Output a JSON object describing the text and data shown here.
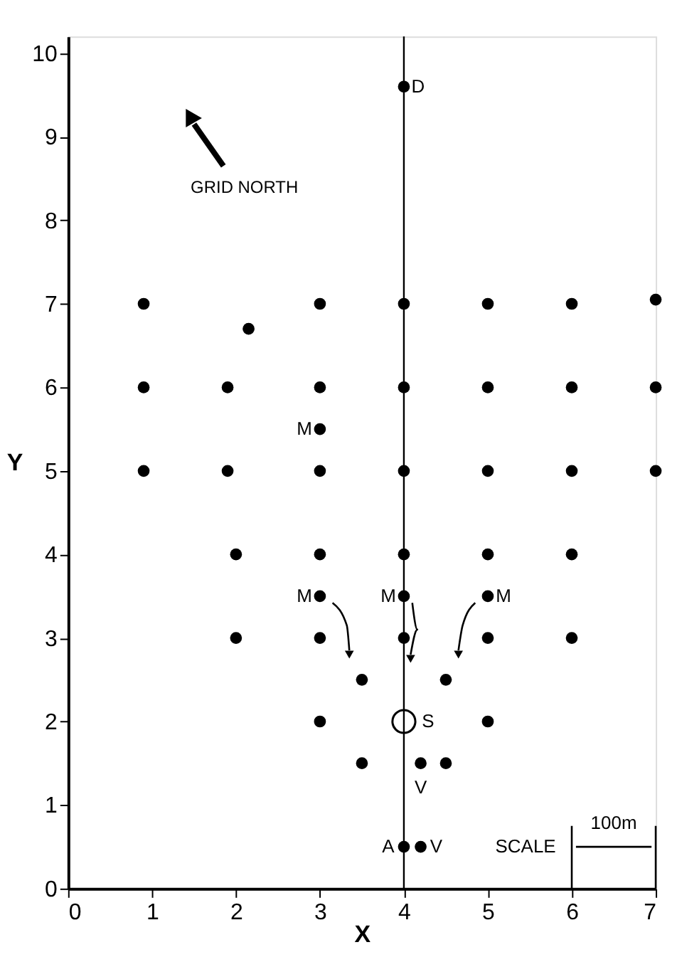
{
  "chart_data": {
    "type": "scatter",
    "xlabel": "X",
    "ylabel": "Y",
    "xlim": [
      0,
      7
    ],
    "xticks": [
      0,
      1,
      2,
      3,
      4,
      5,
      6,
      7
    ],
    "ylim": [
      0,
      10.2
    ],
    "yticks": [
      0,
      1,
      2,
      3,
      4,
      5,
      6,
      7,
      8,
      9,
      10
    ],
    "grid": false,
    "marker": "circle",
    "series": [
      {
        "color": "#000000",
        "x": [
          0.9,
          3,
          4,
          5,
          6,
          7,
          2.15,
          0.9,
          1.9,
          3,
          4,
          5,
          6,
          7,
          3,
          0.9,
          1.9,
          3,
          4,
          5,
          6,
          7,
          2,
          3,
          4,
          5,
          6,
          3,
          4,
          5,
          2,
          3,
          4,
          5,
          6,
          3.5,
          4.5,
          3,
          5,
          3.5,
          4.2,
          4.5,
          4,
          4.2,
          4
        ],
        "values": [
          7,
          7,
          7,
          7,
          7,
          7.05,
          6.7,
          6,
          6,
          6,
          6,
          6,
          6,
          6,
          5.5,
          5,
          5,
          5,
          5,
          5,
          5,
          5,
          4,
          4,
          4,
          4,
          4,
          3.5,
          3.5,
          3.5,
          3,
          3,
          3,
          3,
          3,
          2.5,
          2.5,
          2,
          2,
          1.5,
          1.5,
          1.5,
          0.5,
          0.5,
          9.6
        ]
      },
      {
        "color": "#000000",
        "x": [
          4
        ],
        "values": [
          2
        ]
      }
    ],
    "ref_lines": [
      {
        "axis": "x",
        "value": 4,
        "color": "#000000"
      }
    ],
    "annotations": [
      {
        "text": "D",
        "x": 4,
        "y": 9.6
      },
      {
        "text": "M",
        "x": 3,
        "y": 5.5
      },
      {
        "text": "M",
        "x": 3,
        "y": 3.5
      },
      {
        "text": "M",
        "x": 4,
        "y": 3.5
      },
      {
        "text": "M",
        "x": 5,
        "y": 3.5
      },
      {
        "text": "S",
        "x": 4,
        "y": 2
      },
      {
        "text": "V",
        "x": 4.2,
        "y": 1.5
      },
      {
        "text": "A",
        "x": 4,
        "y": 0.5
      },
      {
        "text": "V",
        "x": 4.2,
        "y": 0.5
      },
      "GRID NORTH",
      "SCALE",
      "100m"
    ]
  }
}
